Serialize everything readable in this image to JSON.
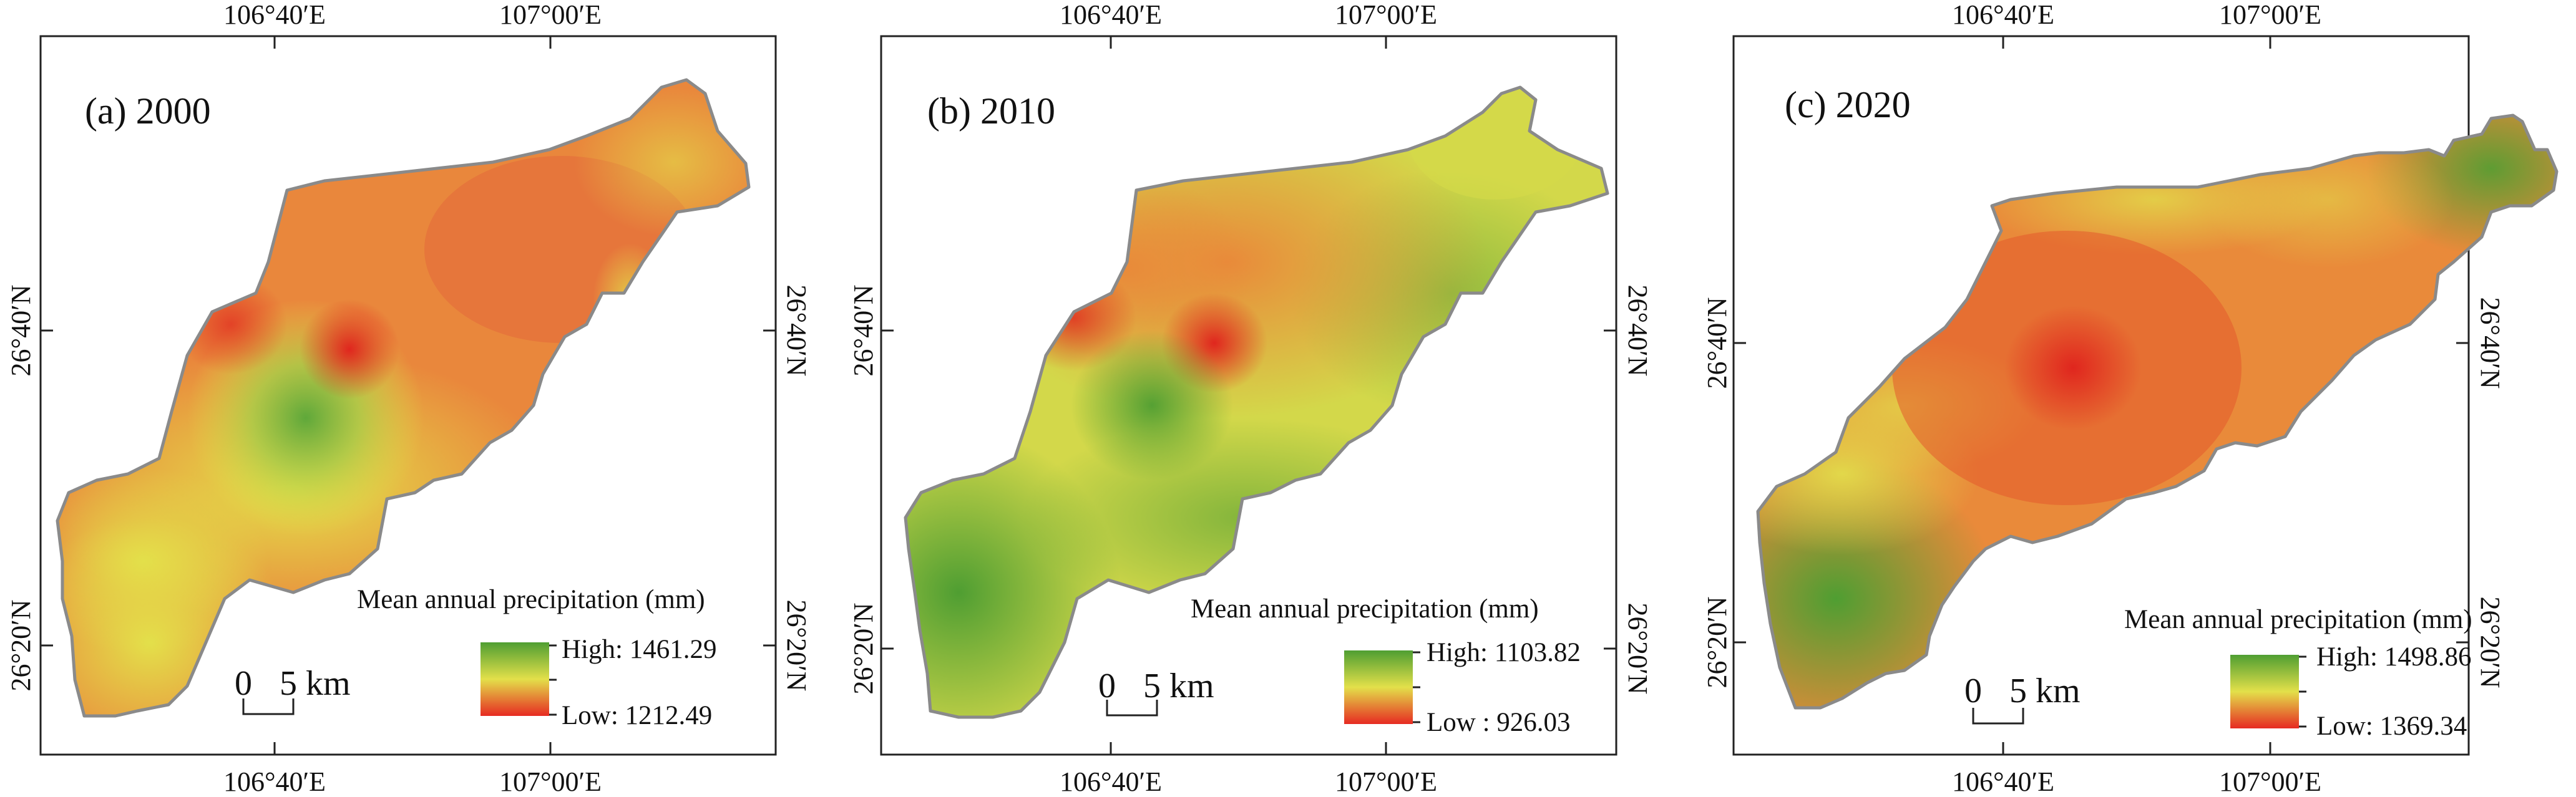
{
  "coordinates": {
    "lon_left": "106°40′E",
    "lon_right": "107°00′E",
    "lat_upper": "26°40′N",
    "lat_lower": "26°20′N"
  },
  "legend_title": "Mean annual precipitation (mm)",
  "scale_bar": {
    "zero": "0",
    "label": "5 km"
  },
  "colors": {
    "high": "#4f9e32",
    "mid": "#e3e04a",
    "low": "#e62a22",
    "outline": "#8a8a8a"
  },
  "panels": [
    {
      "title": "(a) 2000",
      "legend": {
        "high": "High: 1461.29",
        "low": "Low: 1212.49"
      }
    },
    {
      "title": "(b)  2010",
      "legend": {
        "high": "High: 1103.82",
        "low": "Low : 926.03"
      }
    },
    {
      "title": "(c) 2020",
      "legend": {
        "high": "High: 1498.86",
        "low": "Low: 1369.34"
      }
    }
  ]
}
